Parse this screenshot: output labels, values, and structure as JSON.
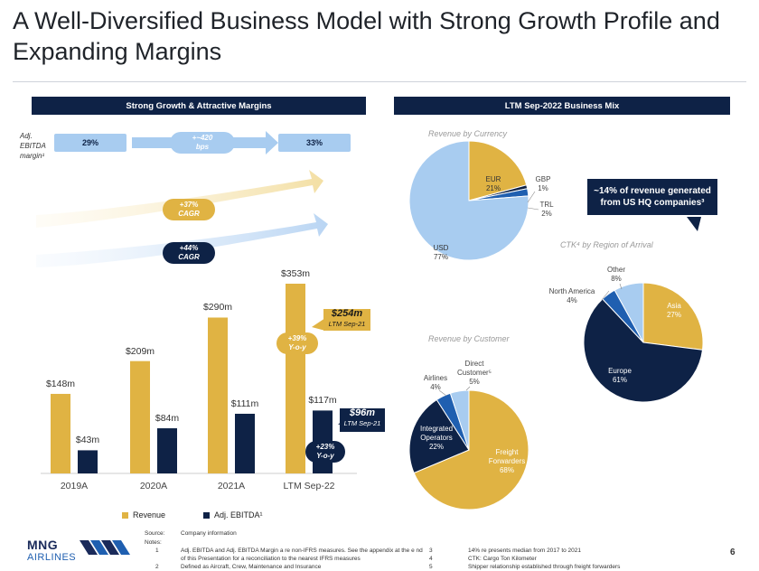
{
  "title": "A Well-Diversified Business Model with Strong Growth Profile and Expanding Margins",
  "left_panel": {
    "header": "Strong Growth  & Attractive  Margins",
    "margin_label_line1": "Adj.",
    "margin_label_line2": "EBITDA",
    "margin_label_line3": "margin¹",
    "margin_start": "29%",
    "margin_end": "33%",
    "margin_delta_line1": "+~420",
    "margin_delta_line2": "bps",
    "revenue_cagr_line1": "+37%",
    "revenue_cagr_line2": "CAGR",
    "ebitda_cagr_line1": "+44%",
    "ebitda_cagr_line2": "CAGR",
    "revenue_yoy_line1": "+39%",
    "revenue_yoy_line2": "Y-o-y",
    "ebitda_yoy_line1": "+23%",
    "ebitda_yoy_line2": "Y-o-y",
    "revenue_ltm_value": "$254m",
    "revenue_ltm_label": "LTM Sep-21",
    "ebitda_ltm_value": "$96m",
    "ebitda_ltm_label": "LTM Sep-21",
    "legend_revenue": "Revenue",
    "legend_ebitda": "Adj. EBITDA¹"
  },
  "chart_data": [
    {
      "type": "bar",
      "categories": [
        "2019A",
        "2020A",
        "2021A",
        "LTM Sep-22"
      ],
      "series": [
        {
          "name": "Revenue",
          "values": [
            148,
            209,
            290,
            353
          ],
          "labels": [
            "$148m",
            "$209m",
            "$290m",
            "$353m"
          ],
          "color": "#e0b343"
        },
        {
          "name": "Adj. EBITDA¹",
          "values": [
            43,
            84,
            111,
            117
          ],
          "labels": [
            "$43m",
            "$84m",
            "$111m",
            "$117m"
          ],
          "color": "#0e2246"
        }
      ],
      "ylim": [
        0,
        353
      ]
    },
    {
      "type": "pie",
      "title": "Revenue  by Currency",
      "slices": [
        {
          "label": "EUR",
          "value": 21,
          "pct": "21%",
          "color": "#e0b343"
        },
        {
          "label": "GBP",
          "value": 1,
          "pct": "1%",
          "color": "#0e2246"
        },
        {
          "label": "TRL",
          "value": 2,
          "pct": "2%",
          "color": "#1f5fb0"
        },
        {
          "label": "USD",
          "value": 77,
          "pct": "77%",
          "color": "#a8ccf0"
        }
      ]
    },
    {
      "type": "pie",
      "title": "CTK⁴  by Region of Arrival",
      "slices": [
        {
          "label": "Asia",
          "value": 27,
          "pct": "27%",
          "color": "#e0b343"
        },
        {
          "label": "Europe",
          "value": 61,
          "pct": "61%",
          "color": "#0e2246"
        },
        {
          "label": "North America",
          "value": 4,
          "pct": "4%",
          "color": "#1f5fb0"
        },
        {
          "label": "Other",
          "value": 8,
          "pct": "8%",
          "color": "#a8ccf0"
        }
      ]
    },
    {
      "type": "pie",
      "title": "Revenue  by Customer",
      "slices": [
        {
          "label": "Freight Forwarders",
          "value": 68,
          "pct": "68%",
          "color": "#e0b343"
        },
        {
          "label": "Integrated Operators",
          "value": 22,
          "pct": "22%",
          "color": "#0e2246"
        },
        {
          "label": "Airlines",
          "value": 4,
          "pct": "4%",
          "color": "#1f5fb0"
        },
        {
          "label": "Direct Customer⁵",
          "value": 5,
          "pct": "5%",
          "color": "#a8ccf0"
        }
      ]
    }
  ],
  "right_panel": {
    "header": "LTM Sep-2022  Business  Mix",
    "callout_line1": "~14% of revenue generated",
    "callout_line2": "from US HQ companies³",
    "ctk_title": "CTK⁴  by Region of Arrival",
    "labels": {
      "eur": "EUR",
      "eur_pct": "21%",
      "gbp": "GBP",
      "gbp_pct": "1%",
      "trl": "TRL",
      "trl_pct": "2%",
      "usd": "USD",
      "usd_pct": "77%",
      "asia": "Asia",
      "asia_pct": "27%",
      "europe": "Europe",
      "europe_pct": "61%",
      "north_america": "North America",
      "north_america_pct": "4%",
      "other": "Other",
      "other_pct": "8%",
      "freight1": "Freight",
      "freight2": "Forwarders",
      "freight_pct": "68%",
      "integrated1": "Integrated",
      "integrated2": "Operators",
      "integrated_pct": "22%",
      "airlines": "Airlines",
      "airlines_pct": "4%",
      "direct1": "Direct",
      "direct2": "Customer⁵",
      "direct_pct": "5%"
    }
  },
  "footer": {
    "source_label": "Source:",
    "source_text": "Company information",
    "notes_label": "Notes:",
    "n1_num": "1",
    "n1_text_line1": "Adj. EBITDA and Adj. EBITDA Margin a re non-IFRS measures. See the appendix at the e nd",
    "n1_text_line2": "of this Presentation for a reconciliation to the nearest IFRS measures",
    "n2_num": "2",
    "n2_text": "Defined as Aircraft, Crew, Maintenance and Insurance",
    "n3_num": "3",
    "n3_text": "14% re presents median from 2017 to 2021",
    "n4_num": "4",
    "n4_text": "CTK: Cargo Ton Kilometer",
    "n5_num": "5",
    "n5_text": "Shipper relationship established through freight forwarders",
    "logo_line1": "MNG",
    "logo_line2": "AIRLINES",
    "page_number": "6"
  }
}
